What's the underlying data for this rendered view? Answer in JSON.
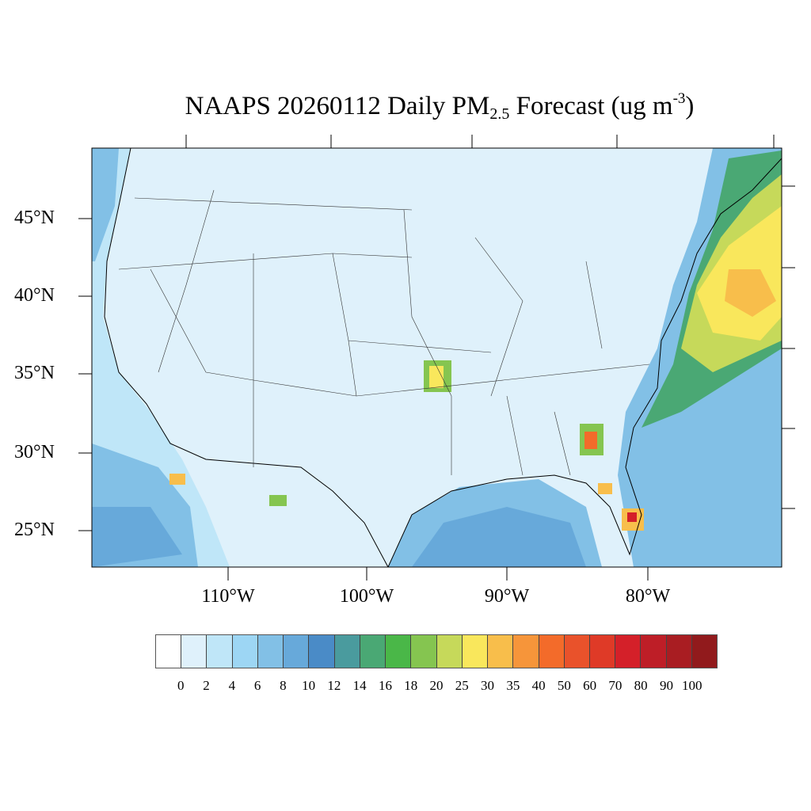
{
  "title": {
    "main": "NAAPS 20260112 Daily PM",
    "sub": "2.5",
    "tail": " Forecast (ug m",
    "sup": "-3",
    "close": ")"
  },
  "map": {
    "lat_labels": [
      "45°N",
      "40°N",
      "35°N",
      "30°N",
      "25°N"
    ],
    "lon_labels": [
      "110°W",
      "100°W",
      "90°W",
      "80°W"
    ],
    "background_color": "#dff1fb"
  },
  "colorbar": {
    "colors": [
      "#ffffff",
      "#dff1fb",
      "#bfe6f8",
      "#9dd6f4",
      "#82c0e6",
      "#67a9da",
      "#4a8bc7",
      "#4a9b9e",
      "#4aa874",
      "#4ab748",
      "#85c550",
      "#c6d95a",
      "#f9e75c",
      "#f8be4b",
      "#f6953a",
      "#f36b2a",
      "#e9522b",
      "#df3a27",
      "#d42029",
      "#be1e27",
      "#a91d22",
      "#911a1c"
    ],
    "labels": [
      "0",
      "2",
      "4",
      "6",
      "8",
      "10",
      "12",
      "14",
      "16",
      "18",
      "20",
      "25",
      "30",
      "35",
      "40",
      "50",
      "60",
      "70",
      "80",
      "90",
      "100"
    ]
  }
}
